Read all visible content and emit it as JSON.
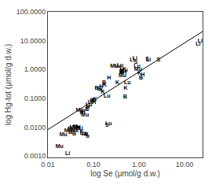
{
  "chart_data": {
    "type": "scatter",
    "log": true,
    "grid": false,
    "xlabel": "log Se (μmol/g d.w.)",
    "ylabel": "log Hg-tot (μmol/g d.w.)",
    "xlim": [
      0.01,
      25.0
    ],
    "ylim": [
      0.0009,
      100
    ],
    "xticks": [
      0.01,
      {
        "value": 0.1,
        "label": "0.10"
      },
      {
        "value": 1.0,
        "label": "1.00"
      },
      {
        "value": 10.0,
        "label": "10.00"
      }
    ],
    "yticks": [
      {
        "value": 0.001,
        "label": "0.0010"
      },
      {
        "value": 0.01,
        "label": "0.0100"
      },
      {
        "value": 0.1,
        "label": "0.1000"
      },
      {
        "value": 1.0,
        "label": "1.0000"
      },
      {
        "value": 10.0,
        "label": "10.0000"
      },
      {
        "value": 100,
        "label": "100.0000"
      }
    ],
    "series": [
      {
        "type": "text",
        "color": "#000000",
        "labels": [
          "Li",
          "Mu",
          "Mu",
          "Mu",
          "B",
          "Mu",
          "Mu",
          "B",
          "Mk",
          "B",
          "Mu",
          "H",
          "S",
          "Li",
          "K",
          "Lu",
          "Lu",
          "K",
          "u",
          "Mu",
          "H",
          "H",
          "Mu",
          "B",
          "H",
          "Lu",
          "Li",
          "H",
          "K",
          "H",
          "K",
          "B",
          "B",
          "H",
          "K",
          "K",
          "B",
          "K",
          "Lu",
          "S",
          "Lu",
          "H",
          "Mu",
          "K",
          "Lu",
          "Lu",
          "B",
          "B",
          "Mu",
          "Mu",
          "K",
          "H",
          "B",
          "K",
          "Lu",
          "Li",
          "Li",
          "S",
          "Lu",
          "Mu",
          "K",
          "B",
          "H",
          "S",
          "Li",
          "S",
          "Li",
          "Li"
        ],
        "x": [
          0.027,
          0.018,
          0.022,
          0.028,
          0.031,
          0.033,
          0.036,
          0.038,
          0.039,
          0.042,
          0.043,
          0.046,
          0.048,
          0.052,
          0.055,
          0.06,
          0.065,
          0.07,
          0.075,
          0.05,
          0.055,
          0.06,
          0.065,
          0.072,
          0.076,
          0.08,
          0.085,
          0.092,
          0.098,
          0.103,
          0.108,
          0.118,
          0.133,
          0.148,
          0.15,
          0.162,
          0.172,
          0.178,
          0.198,
          0.2,
          0.215,
          0.22,
          0.285,
          0.335,
          0.345,
          0.385,
          0.405,
          0.415,
          0.435,
          0.465,
          0.475,
          0.485,
          0.495,
          0.51,
          0.56,
          0.71,
          0.82,
          0.86,
          0.91,
          0.96,
          1.02,
          1.11,
          1.21,
          1.52,
          1.62,
          2.7,
          20.0,
          22.0
        ],
        "values": [
          0.0012,
          0.0022,
          0.0055,
          0.0075,
          0.0065,
          0.0085,
          0.0095,
          0.006,
          0.0075,
          0.0098,
          0.0105,
          0.009,
          0.0088,
          0.0093,
          0.007,
          0.0064,
          0.0058,
          0.0054,
          0.0049,
          0.038,
          0.031,
          0.034,
          0.027,
          0.04,
          0.05,
          0.06,
          0.072,
          0.08,
          0.085,
          0.07,
          0.09,
          0.22,
          0.21,
          0.26,
          0.2,
          0.16,
          0.34,
          0.28,
          0.12,
          0.012,
          0.013,
          0.5,
          1.3,
          0.35,
          1.3,
          1.4,
          0.85,
          0.8,
          0.6,
          0.95,
          1.0,
          0.8,
          0.11,
          0.22,
          0.35,
          2.1,
          2.4,
          1.8,
          1.3,
          1.0,
          0.75,
          0.5,
          0.65,
          2.3,
          2.2,
          2.1,
          7.5,
          9.5
        ]
      },
      {
        "type": "line",
        "color": "#000000",
        "line_style": "solid",
        "x": [
          0.01,
          25.0
        ],
        "values": [
          0.0083176377,
          20.794094278
        ]
      }
    ]
  }
}
